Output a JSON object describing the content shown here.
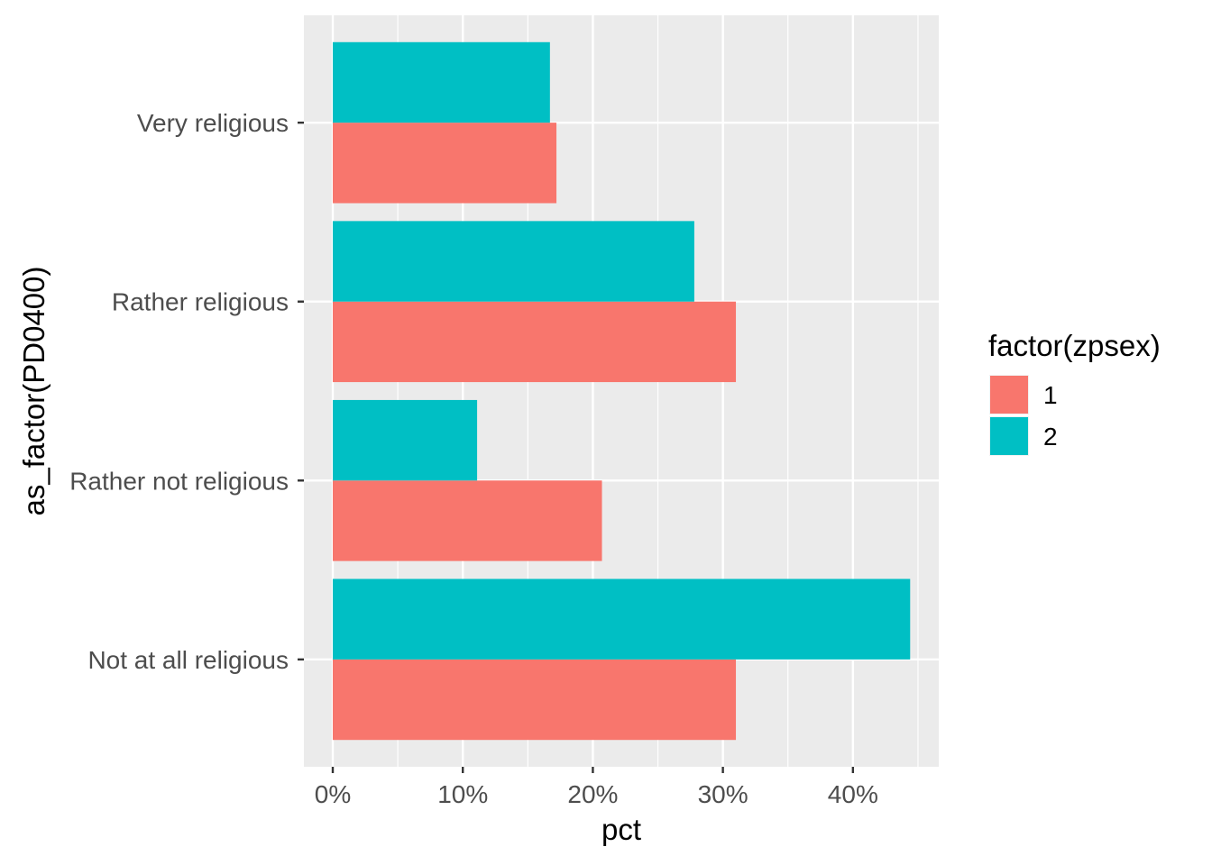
{
  "chart_data": {
    "type": "bar",
    "orientation": "horizontal",
    "categories": [
      "Very religious",
      "Rather religious",
      "Rather not religious",
      "Not at all religious"
    ],
    "series": [
      {
        "name": "1",
        "color": "#F8766D",
        "values": [
          17.2,
          31.0,
          20.7,
          31.0
        ]
      },
      {
        "name": "2",
        "color": "#00BFC4",
        "values": [
          16.7,
          27.8,
          11.1,
          44.4
        ]
      }
    ],
    "xlabel": "pct",
    "ylabel": "as_factor(PD0400)",
    "x_ticks": [
      0,
      10,
      20,
      30,
      40
    ],
    "x_tick_labels": [
      "0%",
      "10%",
      "20%",
      "30%",
      "40%"
    ],
    "xlim": [
      -2.22,
      46.6
    ],
    "legend_title": "factor(zpsex)",
    "legend_position": "right",
    "grid": true,
    "panel_background": "#EBEBEB"
  }
}
